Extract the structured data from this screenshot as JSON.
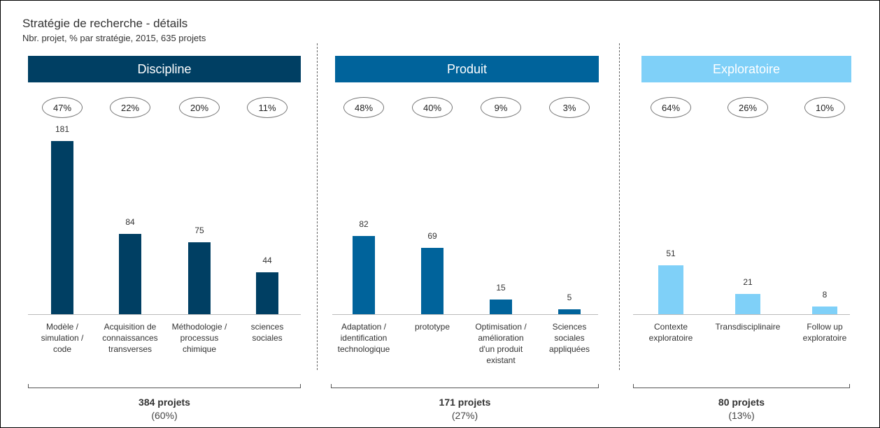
{
  "title": "Stratégie de recherche - détails",
  "subtitle": "Nbr. projet, % par stratégie, 2015, 635 projets",
  "chart_data": [
    {
      "type": "bar",
      "title": "Discipline",
      "color": "#003f63",
      "categories": [
        "Modèle /\nsimulation /\ncode",
        "Acquisition de\nconnaissances\ntransverses",
        "Méthodologie /\nprocessus\nchimique",
        "sciences\nsociales"
      ],
      "values": [
        181,
        84,
        75,
        44
      ],
      "percentages": [
        "47%",
        "22%",
        "20%",
        "11%"
      ],
      "total_label": "384 projets",
      "total_pct": "(60%)"
    },
    {
      "type": "bar",
      "title": "Produit",
      "color": "#00639b",
      "categories": [
        "Adaptation /\nidentification\ntechnologique",
        "prototype",
        "Optimisation /\namélioration\nd'un produit\nexistant",
        "Sciences\nsociales\nappliquées"
      ],
      "values": [
        82,
        69,
        15,
        5
      ],
      "percentages": [
        "48%",
        "40%",
        "9%",
        "3%"
      ],
      "total_label": "171 projets",
      "total_pct": "(27%)"
    },
    {
      "type": "bar",
      "title": "Exploratoire",
      "color": "#7fd0f8",
      "categories": [
        "Contexte\nexploratoire",
        "Transdisciplinaire",
        "Follow up\nexploratoire"
      ],
      "values": [
        51,
        21,
        8
      ],
      "percentages": [
        "64%",
        "26%",
        "10%"
      ],
      "total_label": "80 projets",
      "total_pct": "(13%)"
    }
  ]
}
